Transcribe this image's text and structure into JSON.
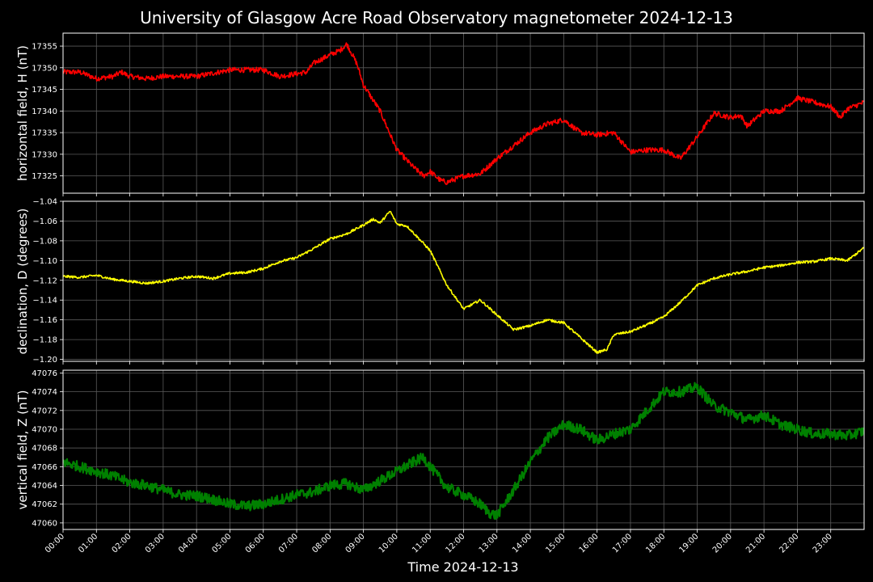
{
  "title": "University of Glasgow Acre Road Observatory magnetometer 2024-12-13",
  "xlabel": "Time 2024-12-13",
  "x_ticks": [
    "00:00",
    "01:00",
    "02:00",
    "03:00",
    "04:00",
    "05:00",
    "06:00",
    "07:00",
    "08:00",
    "09:00",
    "10:00",
    "11:00",
    "12:00",
    "13:00",
    "14:00",
    "15:00",
    "16:00",
    "17:00",
    "18:00",
    "19:00",
    "20:00",
    "21:00",
    "22:00",
    "23:00"
  ],
  "colors": {
    "background": "#000000",
    "grid": "#5a5a5a",
    "text": "#ffffff"
  },
  "chart_data": [
    {
      "type": "line",
      "ylabel": "horizontal field, H (nT)",
      "color": "#ff0000",
      "xlim": [
        0,
        24
      ],
      "ylim": [
        17321,
        17358
      ],
      "yticks": [
        "17325",
        "17330",
        "17335",
        "17340",
        "17345",
        "17350",
        "17355"
      ],
      "grid": true,
      "x": [
        0,
        0.5,
        1,
        1.5,
        1.75,
        2,
        2.5,
        3,
        4,
        5,
        6,
        6.5,
        7.3,
        7.5,
        8,
        8.3,
        8.5,
        8.8,
        9,
        9.5,
        10,
        10.5,
        10.8,
        11,
        11.3,
        11.5,
        12,
        12.5,
        13,
        13.5,
        14,
        14.5,
        15,
        15.5,
        16,
        16.5,
        17,
        17.5,
        18,
        18.5,
        19,
        19.5,
        20,
        20.3,
        20.5,
        21,
        21.5,
        22,
        22.5,
        23,
        23.3,
        23.5,
        24
      ],
      "y": [
        17349,
        17349,
        17347.5,
        17348,
        17349,
        17348,
        17347.5,
        17348,
        17348,
        17349.5,
        17349.5,
        17348,
        17349,
        17351,
        17353,
        17354,
        17355.5,
        17351,
        17346,
        17340,
        17331,
        17327,
        17325,
        17326,
        17324,
        17323.5,
        17325,
        17325.5,
        17329,
        17332,
        17335,
        17337,
        17338,
        17335,
        17334.5,
        17335,
        17330.5,
        17331,
        17331,
        17329,
        17334,
        17339.5,
        17338.5,
        17339,
        17336.5,
        17340,
        17340,
        17343,
        17342,
        17341,
        17338.5,
        17340.5,
        17342
      ]
    },
    {
      "type": "line",
      "ylabel": "declination, D (degrees)",
      "color": "#ffff00",
      "xlim": [
        0,
        24
      ],
      "ylim": [
        -1.202,
        -1.04
      ],
      "yticks": [
        "−1.20",
        "−1.18",
        "−1.16",
        "−1.14",
        "−1.12",
        "−1.10",
        "−1.08",
        "−1.06",
        "−1.04"
      ],
      "grid": true,
      "x": [
        0,
        0.5,
        1,
        1.5,
        2,
        2.5,
        3,
        3.5,
        4,
        4.5,
        5,
        5.5,
        6,
        6.5,
        7,
        7.5,
        8,
        8.5,
        9,
        9.3,
        9.5,
        9.8,
        10,
        10.3,
        10.5,
        11,
        11.5,
        12,
        12.5,
        13,
        13.5,
        14,
        14.5,
        15,
        15.5,
        16,
        16.3,
        16.5,
        17,
        17.5,
        18,
        18.5,
        19,
        19.5,
        20,
        20.5,
        21,
        21.5,
        22,
        22.5,
        23,
        23.5,
        24
      ],
      "y": [
        -1.116,
        -1.117,
        -1.115,
        -1.119,
        -1.121,
        -1.123,
        -1.121,
        -1.118,
        -1.116,
        -1.118,
        -1.113,
        -1.112,
        -1.108,
        -1.101,
        -1.097,
        -1.088,
        -1.078,
        -1.073,
        -1.064,
        -1.058,
        -1.062,
        -1.05,
        -1.063,
        -1.065,
        -1.072,
        -1.09,
        -1.125,
        -1.149,
        -1.14,
        -1.155,
        -1.17,
        -1.166,
        -1.16,
        -1.163,
        -1.178,
        -1.193,
        -1.19,
        -1.175,
        -1.172,
        -1.165,
        -1.157,
        -1.142,
        -1.125,
        -1.118,
        -1.114,
        -1.111,
        -1.107,
        -1.105,
        -1.102,
        -1.101,
        -1.098,
        -1.1,
        -1.087
      ]
    },
    {
      "type": "line",
      "ylabel": "vertical field, Z (nT)",
      "color": "#008000",
      "xlim": [
        0,
        24
      ],
      "ylim": [
        47059.3,
        47076.3
      ],
      "yticks": [
        "47060",
        "47062",
        "47064",
        "47066",
        "47068",
        "47070",
        "47072",
        "47074",
        "47076"
      ],
      "grid": true,
      "x": [
        0,
        0.5,
        1,
        1.5,
        2,
        2.5,
        3,
        3.5,
        4,
        4.5,
        5,
        5.5,
        6,
        6.5,
        7,
        7.5,
        8,
        8.5,
        9,
        9.5,
        10,
        10.5,
        10.8,
        11,
        11.5,
        12,
        12.5,
        12.8,
        13,
        13.5,
        14,
        14.5,
        15,
        15.5,
        16,
        16.5,
        17,
        17.5,
        18,
        18.5,
        19,
        19.5,
        20,
        20.5,
        21,
        21.5,
        22,
        22.5,
        23,
        23.5,
        24
      ],
      "y": [
        47066.5,
        47066,
        47065.5,
        47065,
        47064.3,
        47064,
        47063.5,
        47063,
        47062.9,
        47062.5,
        47062,
        47061.8,
        47062,
        47062.5,
        47063,
        47063.3,
        47064,
        47064.2,
        47063.5,
        47064.5,
        47065.5,
        47066.5,
        47067,
        47066,
        47063.8,
        47063,
        47062,
        47061,
        47060.8,
        47063.5,
        47066.5,
        47069,
        47070.5,
        47070,
        47068.8,
        47069.5,
        47070,
        47072,
        47074,
        47074,
        47074.5,
        47072.5,
        47071.8,
        47071,
        47071.5,
        47070.5,
        47070,
        47069.5,
        47069.5,
        47069.3,
        47069.8
      ]
    }
  ]
}
